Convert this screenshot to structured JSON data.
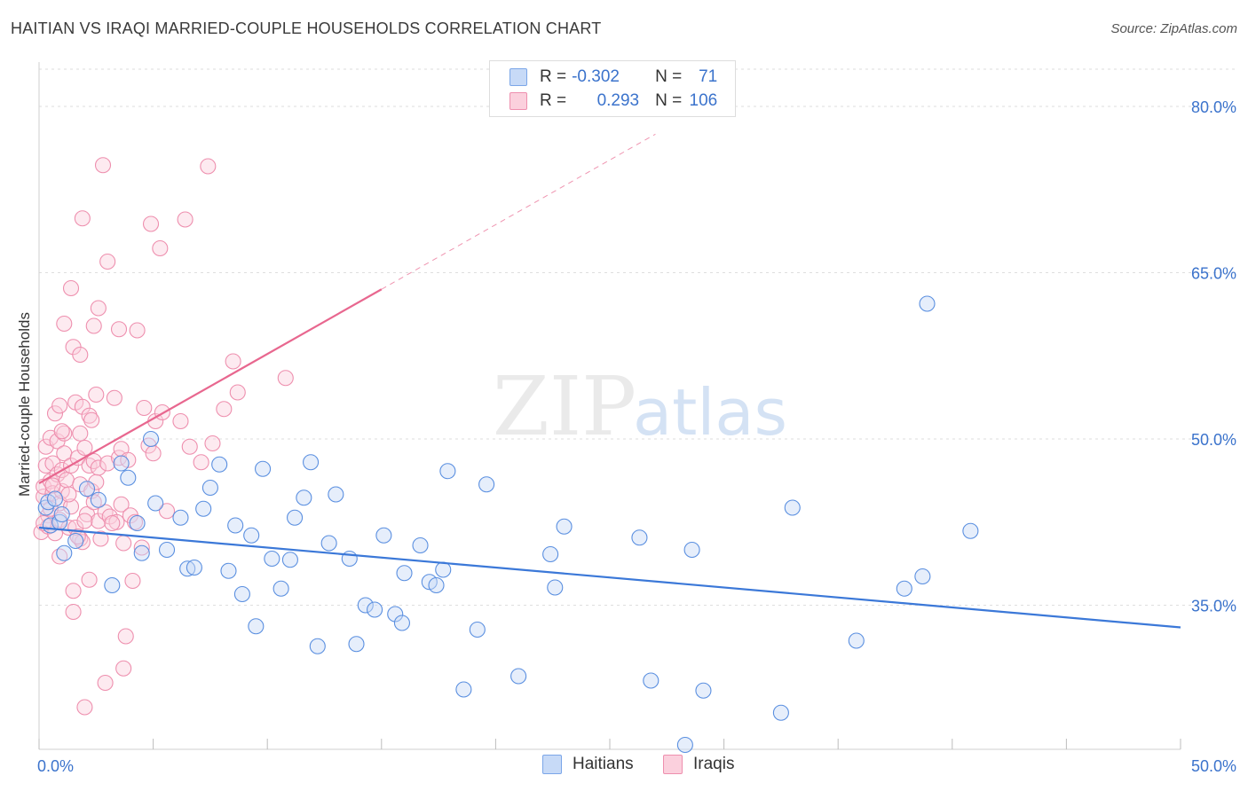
{
  "title": "HAITIAN VS IRAQI MARRIED-COUPLE HOUSEHOLDS CORRELATION CHART",
  "source": "Source: ZipAtlas.com",
  "legend": {
    "haitians": {
      "r_label": "R =",
      "r_value": "-0.302",
      "n_label": "N =",
      "n_value": "71"
    },
    "iraqis": {
      "r_label": "R =",
      "r_value": "0.293",
      "n_label": "N =",
      "n_value": "106"
    }
  },
  "bottom_legend": {
    "haitians": "Haitians",
    "iraqis": "Iraqis"
  },
  "watermark": {
    "zip": "ZIP",
    "atlas": "atlas"
  },
  "colors": {
    "blue": "#5a8fe0",
    "blue_fill": "#c7daf7",
    "pink": "#ee8fae",
    "pink_fill": "#fbd0dd",
    "blue_line": "#3b78d8",
    "pink_line": "#e8678f"
  },
  "chart_data": {
    "type": "scatter",
    "title": "HAITIAN VS IRAQI MARRIED-COUPLE HOUSEHOLDS CORRELATION CHART",
    "xlabel": "",
    "ylabel": "Married-couple Households",
    "xlim": [
      0,
      50
    ],
    "ylim": [
      22,
      84
    ],
    "x_tick_labels": [
      {
        "value": 0,
        "label": "0.0%"
      },
      {
        "value": 50,
        "label": "50.0%"
      }
    ],
    "y_tick_labels": [
      {
        "value": 80,
        "label": "80.0%"
      },
      {
        "value": 65,
        "label": "65.0%"
      },
      {
        "value": 50,
        "label": "50.0%"
      },
      {
        "value": 35,
        "label": "35.0%"
      }
    ],
    "x_minor_ticks": [
      0,
      5,
      10,
      15,
      20,
      25,
      30,
      35,
      40,
      45,
      50
    ],
    "series": [
      {
        "name": "Haitians",
        "points": [
          [
            0.3,
            43.8
          ],
          [
            0.4,
            44.3
          ],
          [
            0.5,
            42.2
          ],
          [
            0.7,
            44.6
          ],
          [
            0.9,
            42.5
          ],
          [
            1.0,
            43.2
          ],
          [
            1.1,
            39.7
          ],
          [
            1.6,
            40.8
          ],
          [
            2.1,
            45.5
          ],
          [
            2.6,
            44.5
          ],
          [
            3.2,
            36.8
          ],
          [
            3.6,
            47.8
          ],
          [
            3.9,
            46.5
          ],
          [
            4.3,
            42.4
          ],
          [
            4.5,
            39.7
          ],
          [
            4.9,
            50.0
          ],
          [
            5.1,
            44.2
          ],
          [
            5.6,
            40.0
          ],
          [
            6.2,
            42.9
          ],
          [
            6.5,
            38.3
          ],
          [
            6.8,
            38.4
          ],
          [
            7.2,
            43.7
          ],
          [
            7.5,
            45.6
          ],
          [
            7.9,
            47.7
          ],
          [
            8.3,
            38.1
          ],
          [
            8.6,
            42.2
          ],
          [
            8.9,
            36.0
          ],
          [
            9.3,
            41.3
          ],
          [
            9.5,
            33.1
          ],
          [
            9.8,
            47.3
          ],
          [
            10.2,
            39.2
          ],
          [
            10.6,
            36.5
          ],
          [
            11.0,
            39.1
          ],
          [
            11.2,
            42.9
          ],
          [
            11.6,
            44.7
          ],
          [
            11.9,
            47.9
          ],
          [
            12.2,
            31.3
          ],
          [
            12.7,
            40.6
          ],
          [
            13.0,
            45.0
          ],
          [
            13.6,
            39.2
          ],
          [
            13.9,
            31.5
          ],
          [
            14.3,
            35.0
          ],
          [
            14.7,
            34.6
          ],
          [
            15.1,
            41.3
          ],
          [
            15.6,
            34.2
          ],
          [
            15.9,
            33.4
          ],
          [
            16.0,
            37.9
          ],
          [
            16.7,
            40.4
          ],
          [
            17.1,
            37.1
          ],
          [
            17.4,
            36.8
          ],
          [
            17.7,
            38.2
          ],
          [
            17.9,
            47.1
          ],
          [
            18.6,
            27.4
          ],
          [
            19.2,
            32.8
          ],
          [
            19.6,
            45.9
          ],
          [
            21.0,
            28.6
          ],
          [
            22.4,
            39.6
          ],
          [
            22.6,
            36.6
          ],
          [
            23.0,
            42.1
          ],
          [
            26.3,
            41.1
          ],
          [
            26.8,
            28.2
          ],
          [
            28.3,
            22.4
          ],
          [
            28.6,
            40.0
          ],
          [
            29.1,
            27.3
          ],
          [
            32.5,
            25.3
          ],
          [
            33.0,
            43.8
          ],
          [
            35.8,
            31.8
          ],
          [
            37.9,
            36.5
          ],
          [
            38.7,
            37.6
          ],
          [
            38.9,
            62.2
          ],
          [
            40.8,
            41.7
          ]
        ]
      },
      {
        "name": "Iraqis",
        "points": [
          [
            0.1,
            41.6
          ],
          [
            0.2,
            44.8
          ],
          [
            0.2,
            45.7
          ],
          [
            0.3,
            49.3
          ],
          [
            0.3,
            47.6
          ],
          [
            0.4,
            43.1
          ],
          [
            0.4,
            42.1
          ],
          [
            0.5,
            50.1
          ],
          [
            0.5,
            46.2
          ],
          [
            0.6,
            47.8
          ],
          [
            0.6,
            45.1
          ],
          [
            0.7,
            52.3
          ],
          [
            0.7,
            41.5
          ],
          [
            0.8,
            49.8
          ],
          [
            0.8,
            46.8
          ],
          [
            0.9,
            44.2
          ],
          [
            0.9,
            42.7
          ],
          [
            0.9,
            39.4
          ],
          [
            1.0,
            47.2
          ],
          [
            1.0,
            45.3
          ],
          [
            1.1,
            60.4
          ],
          [
            1.1,
            50.5
          ],
          [
            1.1,
            48.7
          ],
          [
            1.2,
            46.3
          ],
          [
            1.3,
            42.0
          ],
          [
            1.4,
            63.6
          ],
          [
            1.4,
            47.6
          ],
          [
            1.4,
            43.9
          ],
          [
            1.5,
            58.3
          ],
          [
            1.5,
            36.3
          ],
          [
            1.5,
            34.4
          ],
          [
            1.6,
            53.3
          ],
          [
            1.7,
            48.3
          ],
          [
            1.8,
            57.6
          ],
          [
            1.8,
            50.5
          ],
          [
            1.8,
            45.9
          ],
          [
            1.8,
            41.0
          ],
          [
            1.9,
            69.9
          ],
          [
            1.9,
            52.9
          ],
          [
            1.9,
            40.7
          ],
          [
            2.0,
            49.2
          ],
          [
            2.0,
            25.8
          ],
          [
            2.1,
            43.2
          ],
          [
            2.2,
            37.3
          ],
          [
            2.2,
            47.6
          ],
          [
            2.2,
            52.1
          ],
          [
            2.3,
            51.7
          ],
          [
            2.3,
            45.3
          ],
          [
            2.4,
            60.2
          ],
          [
            2.4,
            48.0
          ],
          [
            2.4,
            44.3
          ],
          [
            2.5,
            54.0
          ],
          [
            2.6,
            61.8
          ],
          [
            2.6,
            47.4
          ],
          [
            2.6,
            42.6
          ],
          [
            2.7,
            41.0
          ],
          [
            2.8,
            74.7
          ],
          [
            2.9,
            28.0
          ],
          [
            2.9,
            43.4
          ],
          [
            3.0,
            66.0
          ],
          [
            3.0,
            47.8
          ],
          [
            3.1,
            43.0
          ],
          [
            3.3,
            53.7
          ],
          [
            3.4,
            42.5
          ],
          [
            3.5,
            59.9
          ],
          [
            3.5,
            48.3
          ],
          [
            3.6,
            49.1
          ],
          [
            3.6,
            44.1
          ],
          [
            3.7,
            40.6
          ],
          [
            3.7,
            29.3
          ],
          [
            3.8,
            32.2
          ],
          [
            3.9,
            48.1
          ],
          [
            4.0,
            43.1
          ],
          [
            4.1,
            37.2
          ],
          [
            4.3,
            59.8
          ],
          [
            4.5,
            40.2
          ],
          [
            4.6,
            52.8
          ],
          [
            4.8,
            49.4
          ],
          [
            4.9,
            69.4
          ],
          [
            5.0,
            48.7
          ],
          [
            5.1,
            51.6
          ],
          [
            5.3,
            67.2
          ],
          [
            5.4,
            52.4
          ],
          [
            5.6,
            43.5
          ],
          [
            6.2,
            51.6
          ],
          [
            6.4,
            69.8
          ],
          [
            6.6,
            49.3
          ],
          [
            7.1,
            47.9
          ],
          [
            7.4,
            74.6
          ],
          [
            7.6,
            49.6
          ],
          [
            8.1,
            52.7
          ],
          [
            8.5,
            57.0
          ],
          [
            8.7,
            54.2
          ],
          [
            10.8,
            55.5
          ],
          [
            1.6,
            42.0
          ],
          [
            2.0,
            42.6
          ],
          [
            0.5,
            43.7
          ],
          [
            1.3,
            45.0
          ],
          [
            0.2,
            42.4
          ],
          [
            1.0,
            50.7
          ],
          [
            2.5,
            46.1
          ],
          [
            3.2,
            42.4
          ],
          [
            0.6,
            45.8
          ],
          [
            1.7,
            41.2
          ],
          [
            0.9,
            53.0
          ],
          [
            4.2,
            42.5
          ]
        ]
      }
    ],
    "trendlines": [
      {
        "series": "Haitians",
        "x": [
          0,
          50
        ],
        "y": [
          42.0,
          33.0
        ],
        "style": "solid"
      },
      {
        "series": "Iraqis",
        "x": [
          0,
          15
        ],
        "y": [
          46.0,
          63.5
        ],
        "style": "solid"
      },
      {
        "series": "Iraqis",
        "x": [
          15,
          27
        ],
        "y": [
          63.5,
          77.5
        ],
        "style": "dashed"
      }
    ]
  }
}
